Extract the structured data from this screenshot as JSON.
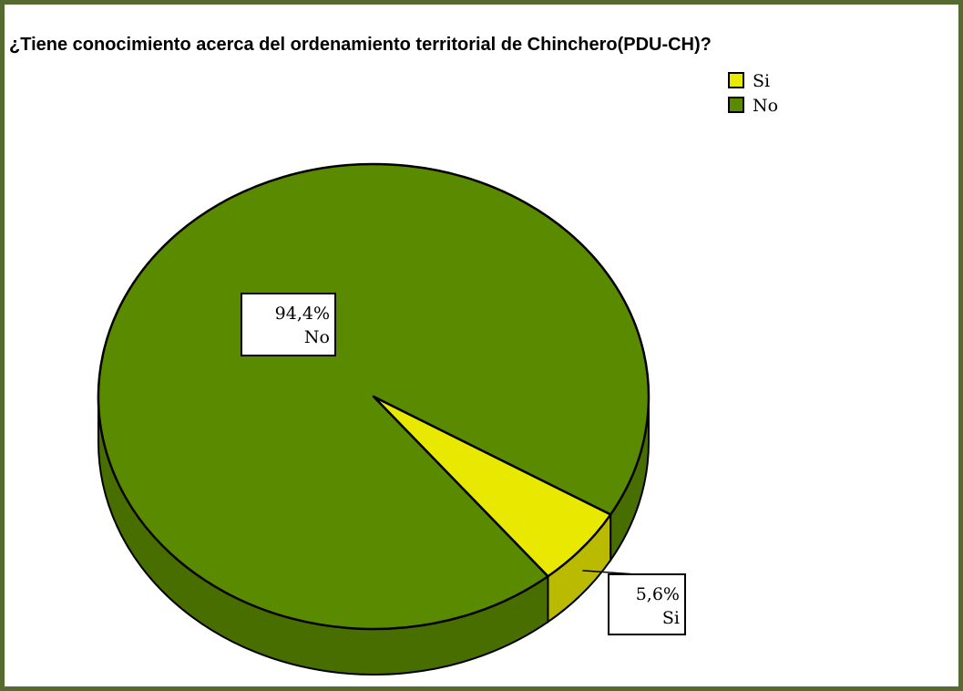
{
  "chart_data": {
    "type": "pie",
    "title": "¿Tiene conocimiento acerca del ordenamiento territorial de Chinchero(PDU-CH)?",
    "categories": [
      "Si",
      "No"
    ],
    "values": [
      5.6,
      94.4
    ],
    "value_labels": [
      "5,6%",
      "94,4%"
    ],
    "colors": [
      "#e8e800",
      "#5a8a00"
    ],
    "legend": "top-right"
  }
}
